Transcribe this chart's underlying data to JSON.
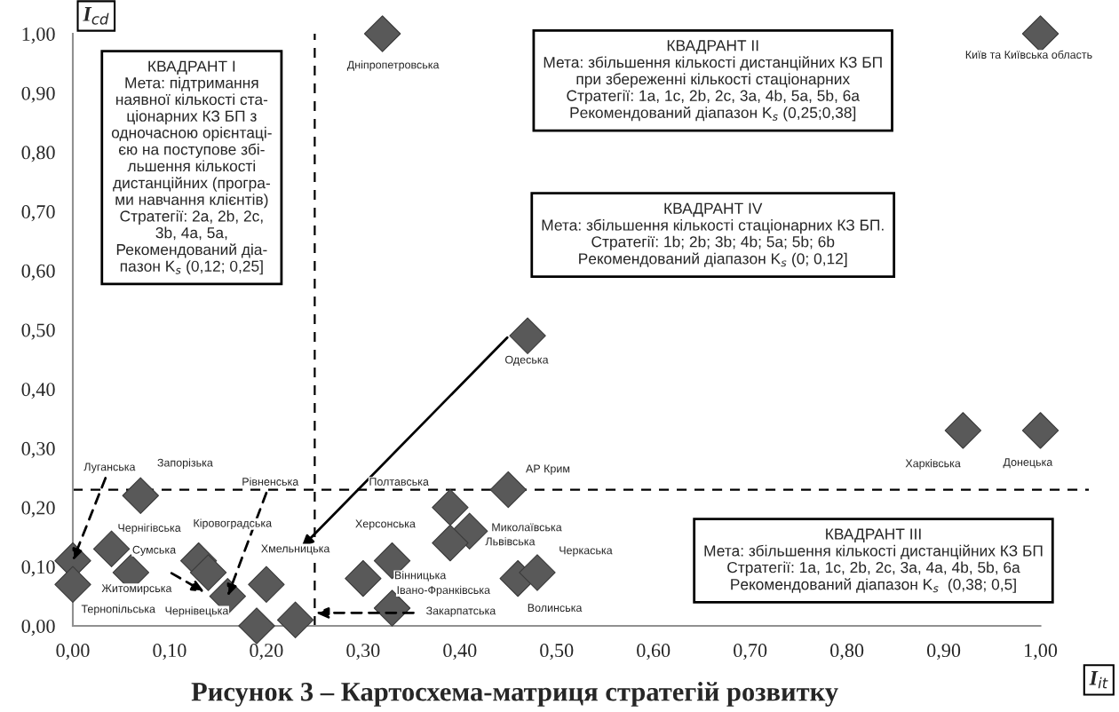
{
  "chart_data": {
    "type": "scatter",
    "title": "Рисунок 3 – Картосхема-матриця стратегій розвитку",
    "xlabel": "I$_{it}$",
    "ylabel": "I$_{cd}$",
    "xlim": [
      0,
      1.05
    ],
    "ylim": [
      0,
      1.0
    ],
    "xticks": [
      {
        "value": 0,
        "label": "0,00"
      },
      {
        "value": 0.1,
        "label": "0,10"
      },
      {
        "value": 0.2,
        "label": "0,20"
      },
      {
        "value": 0.3,
        "label": "0,30"
      },
      {
        "value": 0.4,
        "label": "0,40"
      },
      {
        "value": 0.5,
        "label": "0,50"
      },
      {
        "value": 0.6,
        "label": "0,60"
      },
      {
        "value": 0.7,
        "label": "0,70"
      },
      {
        "value": 0.8,
        "label": "0,80"
      },
      {
        "value": 0.9,
        "label": "0,90"
      },
      {
        "value": 1.0,
        "label": "1,00"
      }
    ],
    "yticks": [
      {
        "value": 0,
        "label": "0,00"
      },
      {
        "value": 0.1,
        "label": "0,10"
      },
      {
        "value": 0.2,
        "label": "0,20"
      },
      {
        "value": 0.3,
        "label": "0,30"
      },
      {
        "value": 0.4,
        "label": "0,40"
      },
      {
        "value": 0.5,
        "label": "0,50"
      },
      {
        "value": 0.6,
        "label": "0,60"
      },
      {
        "value": 0.7,
        "label": "0,70"
      },
      {
        "value": 0.8,
        "label": "0,80"
      },
      {
        "value": 0.9,
        "label": "0,90"
      },
      {
        "value": 1.0,
        "label": "1,00"
      }
    ],
    "grid": false,
    "legend": false,
    "marker": "diamond",
    "series": [
      {
        "color": "#595959",
        "x": [
          0.0,
          0.0,
          0.04,
          0.06,
          0.07,
          0.13,
          0.14,
          0.16,
          0.2,
          0.19,
          0.23,
          0.3,
          0.33,
          0.33,
          0.39,
          0.41,
          0.39,
          0.45,
          0.46,
          0.48,
          0.47,
          0.92,
          1.0,
          0.32,
          1.0
        ],
        "values": [
          0.11,
          0.07,
          0.13,
          0.09,
          0.22,
          0.11,
          0.09,
          0.05,
          0.07,
          0.0,
          0.01,
          0.08,
          0.11,
          0.03,
          0.2,
          0.16,
          0.14,
          0.23,
          0.08,
          0.09,
          0.49,
          0.33,
          0.33,
          1.0,
          1.0
        ]
      }
    ],
    "ref_lines": [
      {
        "axis": "x",
        "value": 0.25,
        "color": "#000000",
        "line_style": "dashed"
      },
      {
        "axis": "y",
        "value": 0.23,
        "color": "#000000",
        "line_style": "dashed"
      }
    ],
    "annotations": [
      "КВАДРАНТ I\nМета: підтримання\nнаявної кількості ста-\nціонарних КЗ БП з\nодночасною орієнтаці-\nєю на поступове збі-\nльшення кількості\nдистанційних (програ-\nми навчання клієнтів)\nСтратегії: 2a, 2b, 2c,\n3b, 4a, 5a,\nРекомендований діа-\nпазон K$_{s}$ (0,12; 0,25]",
      "КВАДРАНТ II\nМета: збільшення кількості дистанційних КЗ БП\nпри збереженні кількості стаціонарних\nСтратегії: 1a, 1c, 2b, 2c, 3a, 4b, 5a, 5b, 6a\nРекомендований діапазон K$_{s}$ (0,25;0,38]",
      "КВАДРАНТ IV\nМета: збільшення кількості стаціонарних КЗ БП.\nСтратегії: 1b; 2b; 3b; 4b; 5a; 5b; 6b\nРекомендований діапазон K$_{s}$ (0; 0,12]",
      "КВАДРАНТ III\nМета: збільшення кількості дистанційних КЗ БП\nСтратегії: 1a, 1c, 2b, 2c, 3a, 4a, 4b, 5b, 6a\nРекомендований діапазон K$_{s}$  (0,38; 0,5]",
      {
        "text": "Луганська",
        "x": 0.0,
        "y": 0.11
      },
      "Запорізька",
      {
        "text": "Рівненська",
        "x": 0.16,
        "y": 0.05
      },
      "Чернігівська",
      "Кіровоградська",
      "Сумська",
      "Хмельницька",
      "Житомирська",
      "Тернопільська",
      "Чернівецька",
      "Полтавська",
      "Херсонська",
      "Вінницька",
      "Івано-Франківська",
      "Закарпатська",
      "АР Крим",
      "Миколаївська",
      "Львівська",
      "Черкаська",
      "Волинська",
      "Одеська",
      "Харківська",
      "Донецька",
      "Дніпропетровська",
      "Київ та Київська область"
    ]
  }
}
